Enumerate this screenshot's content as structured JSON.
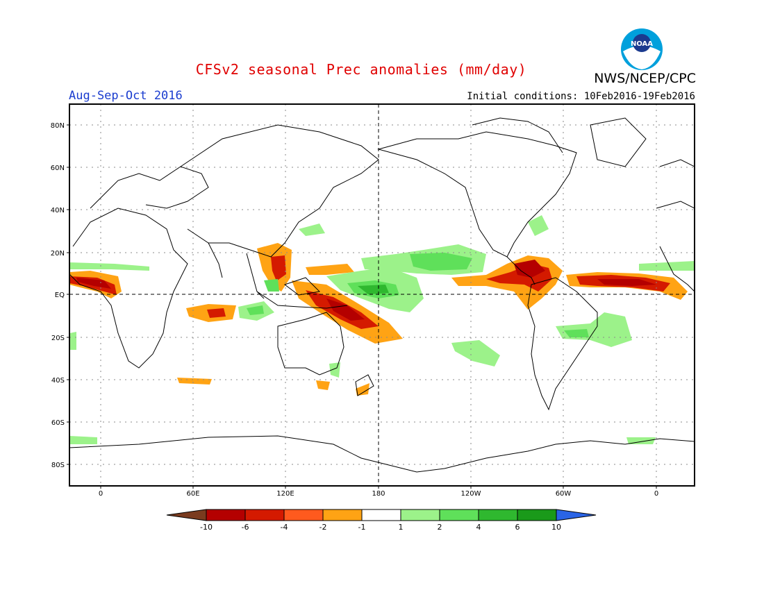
{
  "header": {
    "title": "CFSv2 seasonal Prec anomalies (mm/day)",
    "agency": "NWS/NCEP/CPC",
    "season": "Aug-Sep-Oct 2016",
    "initial_conditions": "Initial conditions: 10Feb2016-19Feb2016",
    "logo_text": "NOAA"
  },
  "map": {
    "lat_labels": [
      "80N",
      "60N",
      "40N",
      "20N",
      "EQ",
      "20S",
      "40S",
      "60S",
      "80S"
    ],
    "lon_labels": [
      "0",
      "60E",
      "120E",
      "180",
      "120W",
      "60W",
      "0"
    ],
    "colors": {
      "frame": "#000000",
      "coast": "#000000",
      "grid": "#8a8a8a"
    }
  },
  "colorbar": {
    "labels": [
      "-10",
      "-6",
      "-4",
      "-2",
      "-1",
      "1",
      "2",
      "4",
      "6",
      "10"
    ],
    "colors": [
      "#7a3b1f",
      "#b40000",
      "#d41a00",
      "#ff5a1e",
      "#ffa314",
      "#ffffff",
      "#9cf28a",
      "#5fe05a",
      "#2fb82f",
      "#1a9a1a",
      "#2a64e6"
    ]
  },
  "chart_data": {
    "type": "heatmap",
    "title": "CFSv2 seasonal Prec anomalies (mm/day)",
    "season": "Aug-Sep-Oct 2016",
    "initial_conditions": "10Feb2016-19Feb2016",
    "legend_bins": [
      -10,
      -6,
      -4,
      -2,
      -1,
      1,
      2,
      4,
      6,
      10
    ],
    "xlim": [
      "20W",
      "20E (380)"
    ],
    "ylim": [
      "90S",
      "90N"
    ]
  }
}
